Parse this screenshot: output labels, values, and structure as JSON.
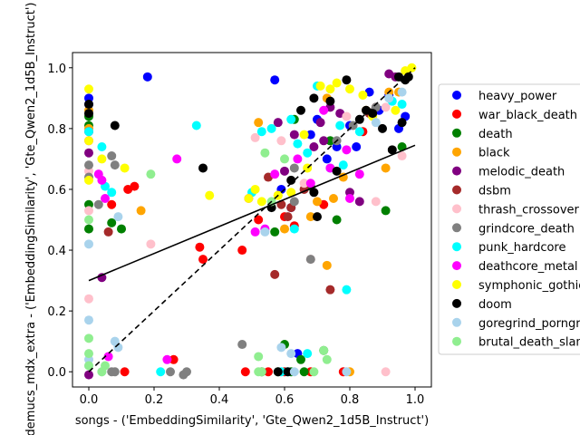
{
  "chart_data": {
    "type": "scatter",
    "title": "",
    "xlabel": "songs - ('EmbeddingSimilarity', 'Gte_Qwen2_1d5B_Instruct')",
    "ylabel": "demucs_mdx_extra - ('EmbeddingSimilarity', 'Gte_Qwen2_1d5B_Instruct')",
    "xlim": [
      -0.05,
      1.05
    ],
    "ylim": [
      -0.05,
      1.05
    ],
    "xticks": [
      "0.0",
      "0.2",
      "0.4",
      "0.6",
      "0.8",
      "1.0"
    ],
    "yticks": [
      "0.0",
      "0.2",
      "0.4",
      "0.6",
      "0.8",
      "1.0"
    ],
    "grid": false,
    "legend_position": "right, outside plot",
    "fit_line": {
      "x": [
        0.0,
        1.0
      ],
      "y": [
        0.3,
        0.745
      ],
      "style": "solid",
      "color": "#000000"
    },
    "identity_line": {
      "x": [
        0.0,
        1.0
      ],
      "y": [
        0.0,
        1.0
      ],
      "style": "dashed",
      "color": "#000000"
    },
    "series": [
      {
        "name": "heavy_power",
        "color": "#0000ff",
        "points": [
          [
            0.0,
            0.9
          ],
          [
            0.0,
            0.88
          ],
          [
            0.18,
            0.97
          ],
          [
            0.57,
            0.96
          ],
          [
            0.62,
            0.54
          ],
          [
            0.64,
            0.06
          ],
          [
            0.68,
            0.78
          ],
          [
            0.7,
            0.83
          ],
          [
            0.73,
            0.7
          ],
          [
            0.8,
            0.81
          ],
          [
            0.82,
            0.74
          ],
          [
            0.86,
            0.92
          ],
          [
            0.89,
            0.86
          ],
          [
            0.92,
            0.91
          ],
          [
            0.95,
            0.8
          ],
          [
            0.97,
            0.84
          ],
          [
            0.59,
            0.6
          ],
          [
            0.76,
            0.74
          ]
        ]
      },
      {
        "name": "war_black_death",
        "color": "#ff0000",
        "points": [
          [
            0.07,
            0.55
          ],
          [
            0.12,
            0.6
          ],
          [
            0.14,
            0.61
          ],
          [
            0.34,
            0.41
          ],
          [
            0.35,
            0.37
          ],
          [
            0.47,
            0.4
          ],
          [
            0.52,
            0.5
          ],
          [
            0.6,
            0.51
          ],
          [
            0.63,
            0.48
          ],
          [
            0.48,
            0.0
          ],
          [
            0.55,
            0.0
          ],
          [
            0.6,
            0.0
          ],
          [
            0.68,
            0.0
          ],
          [
            0.78,
            0.0
          ],
          [
            0.11,
            0.0
          ],
          [
            0.26,
            0.04
          ],
          [
            0.72,
            0.55
          ],
          [
            0.84,
            0.79
          ]
        ]
      },
      {
        "name": "death",
        "color": "#008000",
        "points": [
          [
            0.0,
            0.84
          ],
          [
            0.0,
            0.81
          ],
          [
            0.0,
            0.55
          ],
          [
            0.0,
            0.47
          ],
          [
            0.1,
            0.47
          ],
          [
            0.07,
            0.49
          ],
          [
            0.57,
            0.46
          ],
          [
            0.63,
            0.83
          ],
          [
            0.68,
            0.61
          ],
          [
            0.74,
            0.76
          ],
          [
            0.76,
            0.5
          ],
          [
            0.91,
            0.53
          ],
          [
            0.96,
            0.74
          ],
          [
            0.53,
            0.0
          ],
          [
            0.58,
            0.0
          ],
          [
            0.62,
            0.0
          ],
          [
            0.66,
            0.0
          ],
          [
            0.6,
            0.09
          ],
          [
            0.65,
            0.04
          ],
          [
            0.72,
            0.07
          ]
        ]
      },
      {
        "name": "black",
        "color": "#ffa500",
        "points": [
          [
            0.0,
            0.86
          ],
          [
            0.0,
            0.8
          ],
          [
            0.16,
            0.53
          ],
          [
            0.52,
            0.82
          ],
          [
            0.6,
            0.47
          ],
          [
            0.68,
            0.51
          ],
          [
            0.7,
            0.56
          ],
          [
            0.73,
            0.9
          ],
          [
            0.73,
            0.35
          ],
          [
            0.75,
            0.57
          ],
          [
            0.78,
            0.64
          ],
          [
            0.8,
            0.0
          ],
          [
            0.85,
            0.86
          ],
          [
            0.91,
            0.67
          ],
          [
            0.92,
            0.92
          ],
          [
            0.95,
            0.92
          ],
          [
            0.58,
            0.58
          ]
        ]
      },
      {
        "name": "melodic_death",
        "color": "#800080",
        "points": [
          [
            0.0,
            0.79
          ],
          [
            0.0,
            0.72
          ],
          [
            0.04,
            0.31
          ],
          [
            0.0,
            -0.01
          ],
          [
            0.58,
            0.82
          ],
          [
            0.63,
            0.78
          ],
          [
            0.69,
            0.74
          ],
          [
            0.72,
            0.76
          ],
          [
            0.74,
            0.87
          ],
          [
            0.77,
            0.85
          ],
          [
            0.8,
            0.59
          ],
          [
            0.83,
            0.56
          ],
          [
            0.92,
            0.98
          ],
          [
            0.94,
            0.97
          ],
          [
            0.6,
            0.66
          ],
          [
            0.71,
            0.82
          ]
        ]
      },
      {
        "name": "dsbm",
        "color": "#a52a2a",
        "points": [
          [
            0.06,
            0.46
          ],
          [
            0.57,
            0.32
          ],
          [
            0.59,
            0.55
          ],
          [
            0.61,
            0.51
          ],
          [
            0.66,
            0.6
          ],
          [
            0.74,
            0.27
          ],
          [
            0.86,
            0.85
          ],
          [
            0.88,
            0.87
          ],
          [
            0.62,
            0.54
          ],
          [
            0.55,
            0.64
          ]
        ]
      },
      {
        "name": "thrash_crossover",
        "color": "#ffc0cb",
        "points": [
          [
            0.0,
            0.24
          ],
          [
            0.0,
            0.66
          ],
          [
            0.0,
            0.53
          ],
          [
            0.19,
            0.42
          ],
          [
            0.59,
            0.76
          ],
          [
            0.66,
            0.62
          ],
          [
            0.68,
            0.37
          ],
          [
            0.79,
            0.84
          ],
          [
            0.88,
            0.56
          ],
          [
            0.91,
            0.87
          ],
          [
            0.96,
            0.71
          ],
          [
            0.91,
            0.0
          ],
          [
            0.97,
            0.99
          ],
          [
            0.51,
            0.77
          ]
        ]
      },
      {
        "name": "grindcore_death",
        "color": "#808080",
        "points": [
          [
            0.0,
            0.68
          ],
          [
            0.0,
            0.64
          ],
          [
            0.03,
            0.55
          ],
          [
            0.07,
            0.71
          ],
          [
            0.08,
            0.68
          ],
          [
            0.47,
            0.09
          ],
          [
            0.63,
            0.67
          ],
          [
            0.68,
            0.37
          ],
          [
            0.76,
            0.76
          ],
          [
            0.81,
            0.81
          ],
          [
            0.29,
            -0.01
          ],
          [
            0.3,
            0.0
          ],
          [
            0.25,
            0.0
          ],
          [
            0.08,
            0.0
          ],
          [
            0.07,
            0.0
          ],
          [
            0.88,
            0.87
          ],
          [
            0.63,
            0.56
          ]
        ]
      },
      {
        "name": "punk_hardcore",
        "color": "#00ffff",
        "points": [
          [
            0.0,
            0.79
          ],
          [
            0.04,
            0.74
          ],
          [
            0.05,
            0.61
          ],
          [
            0.07,
            0.59
          ],
          [
            0.33,
            0.81
          ],
          [
            0.53,
            0.79
          ],
          [
            0.56,
            0.8
          ],
          [
            0.62,
            0.83
          ],
          [
            0.64,
            0.75
          ],
          [
            0.67,
            0.72
          ],
          [
            0.7,
            0.94
          ],
          [
            0.74,
            0.67
          ],
          [
            0.77,
            0.81
          ],
          [
            0.79,
            0.27
          ],
          [
            0.83,
            0.79
          ],
          [
            0.93,
            0.89
          ],
          [
            0.96,
            0.88
          ],
          [
            0.22,
            0.0
          ],
          [
            0.59,
            0.0
          ],
          [
            0.61,
            0.0
          ],
          [
            0.67,
            0.06
          ],
          [
            0.63,
            0.47
          ],
          [
            0.78,
            0.68
          ],
          [
            0.5,
            0.59
          ]
        ]
      },
      {
        "name": "deathcore_metal",
        "color": "#ff00ff",
        "points": [
          [
            0.0,
            0.76
          ],
          [
            0.03,
            0.65
          ],
          [
            0.04,
            0.63
          ],
          [
            0.05,
            0.57
          ],
          [
            0.06,
            0.05
          ],
          [
            0.27,
            0.7
          ],
          [
            0.49,
            0.57
          ],
          [
            0.54,
            0.47
          ],
          [
            0.57,
            0.65
          ],
          [
            0.64,
            0.7
          ],
          [
            0.68,
            0.62
          ],
          [
            0.72,
            0.86
          ],
          [
            0.74,
            0.67
          ],
          [
            0.8,
            0.57
          ],
          [
            0.83,
            0.65
          ],
          [
            0.24,
            0.04
          ],
          [
            0.79,
            0.73
          ],
          [
            0.51,
            0.46
          ]
        ]
      },
      {
        "name": "symphonic_gothic",
        "color": "#ffff00",
        "points": [
          [
            0.0,
            0.93
          ],
          [
            0.0,
            0.76
          ],
          [
            0.0,
            0.63
          ],
          [
            0.04,
            0.7
          ],
          [
            0.11,
            0.67
          ],
          [
            0.37,
            0.58
          ],
          [
            0.49,
            0.57
          ],
          [
            0.51,
            0.6
          ],
          [
            0.53,
            0.56
          ],
          [
            0.58,
            0.58
          ],
          [
            0.62,
            0.59
          ],
          [
            0.66,
            0.78
          ],
          [
            0.71,
            0.94
          ],
          [
            0.74,
            0.93
          ],
          [
            0.76,
            0.95
          ],
          [
            0.8,
            0.93
          ],
          [
            0.84,
            0.91
          ],
          [
            0.87,
            0.84
          ],
          [
            0.94,
            0.86
          ],
          [
            0.97,
            0.99
          ],
          [
            0.99,
            1.0
          ],
          [
            0.67,
            0.67
          ]
        ]
      },
      {
        "name": "doom",
        "color": "#000000",
        "points": [
          [
            0.0,
            0.88
          ],
          [
            0.0,
            0.85
          ],
          [
            0.08,
            0.81
          ],
          [
            0.35,
            0.67
          ],
          [
            0.65,
            0.86
          ],
          [
            0.69,
            0.9
          ],
          [
            0.7,
            0.51
          ],
          [
            0.74,
            0.89
          ],
          [
            0.76,
            0.66
          ],
          [
            0.79,
            0.96
          ],
          [
            0.83,
            0.83
          ],
          [
            0.85,
            0.86
          ],
          [
            0.87,
            0.85
          ],
          [
            0.9,
            0.8
          ],
          [
            0.93,
            0.73
          ],
          [
            0.95,
            0.97
          ],
          [
            0.97,
            0.96
          ],
          [
            0.98,
            0.97
          ],
          [
            0.56,
            0.54
          ],
          [
            0.62,
            0.63
          ],
          [
            0.69,
            0.59
          ],
          [
            0.96,
            0.82
          ],
          [
            0.58,
            0.0
          ],
          [
            0.61,
            0.0
          ]
        ]
      },
      {
        "name": "goregrind_porngrind",
        "color": "#a9d3ec",
        "points": [
          [
            0.0,
            0.42
          ],
          [
            0.0,
            0.17
          ],
          [
            0.0,
            0.04
          ],
          [
            0.0,
            0.02
          ],
          [
            0.08,
            0.1
          ],
          [
            0.09,
            0.08
          ],
          [
            0.09,
            0.51
          ],
          [
            0.04,
            0.0
          ],
          [
            0.59,
            0.08
          ],
          [
            0.62,
            0.06
          ],
          [
            0.88,
            0.82
          ],
          [
            0.92,
            0.9
          ],
          [
            0.96,
            0.92
          ],
          [
            0.63,
            0.0
          ],
          [
            0.54,
            0.46
          ],
          [
            0.79,
            0.0
          ]
        ]
      },
      {
        "name": "brutal_death_slam",
        "color": "#90ee90",
        "points": [
          [
            0.0,
            0.5
          ],
          [
            0.0,
            0.06
          ],
          [
            0.0,
            0.02
          ],
          [
            0.0,
            0.11
          ],
          [
            0.04,
            0.0
          ],
          [
            0.05,
            0.02
          ],
          [
            0.19,
            0.65
          ],
          [
            0.52,
            0.05
          ],
          [
            0.54,
            0.72
          ],
          [
            0.6,
            0.7
          ],
          [
            0.69,
            0.0
          ],
          [
            0.72,
            0.07
          ],
          [
            0.73,
            0.04
          ],
          [
            0.52,
            0.0
          ],
          [
            0.53,
            0.0
          ],
          [
            0.56,
            0.56
          ]
        ]
      }
    ]
  }
}
